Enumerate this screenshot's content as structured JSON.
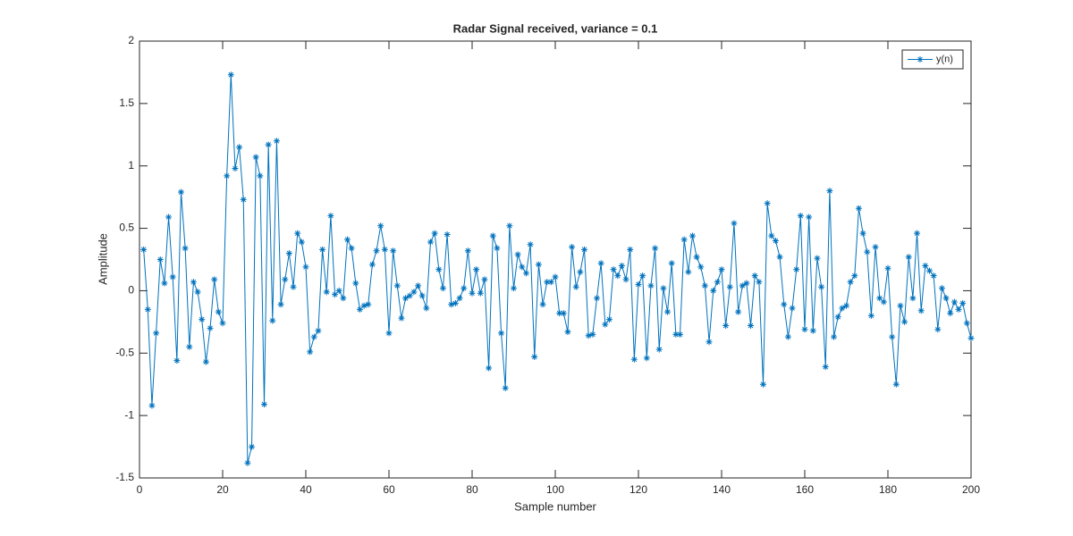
{
  "chart_data": {
    "type": "line",
    "title": "Radar Signal received, variance = 0.1",
    "xlabel": "Sample number",
    "ylabel": "Amplitude",
    "x": [
      1,
      2,
      3,
      4,
      5,
      6,
      7,
      8,
      9,
      10,
      11,
      12,
      13,
      14,
      15,
      16,
      17,
      18,
      19,
      20,
      21,
      22,
      23,
      24,
      25,
      26,
      27,
      28,
      29,
      30,
      31,
      32,
      33,
      34,
      35,
      36,
      37,
      38,
      39,
      40,
      41,
      42,
      43,
      44,
      45,
      46,
      47,
      48,
      49,
      50,
      51,
      52,
      53,
      54,
      55,
      56,
      57,
      58,
      59,
      60,
      61,
      62,
      63,
      64,
      65,
      66,
      67,
      68,
      69,
      70,
      71,
      72,
      73,
      74,
      75,
      76,
      77,
      78,
      79,
      80,
      81,
      82,
      83,
      84,
      85,
      86,
      87,
      88,
      89,
      90,
      91,
      92,
      93,
      94,
      95,
      96,
      97,
      98,
      99,
      100,
      101,
      102,
      103,
      104,
      105,
      106,
      107,
      108,
      109,
      110,
      111,
      112,
      113,
      114,
      115,
      116,
      117,
      118,
      119,
      120,
      121,
      122,
      123,
      124,
      125,
      126,
      127,
      128,
      129,
      130,
      131,
      132,
      133,
      134,
      135,
      136,
      137,
      138,
      139,
      140,
      141,
      142,
      143,
      144,
      145,
      146,
      147,
      148,
      149,
      150,
      151,
      152,
      153,
      154,
      155,
      156,
      157,
      158,
      159,
      160,
      161,
      162,
      163,
      164,
      165,
      166,
      167,
      168,
      169,
      170,
      171,
      172,
      173,
      174,
      175,
      176,
      177,
      178,
      179,
      180,
      181,
      182,
      183,
      184,
      185,
      186,
      187,
      188,
      189,
      190,
      191,
      192,
      193,
      194,
      195,
      196,
      197,
      198,
      199,
      200
    ],
    "series": [
      {
        "name": "y(n)",
        "color": "#0072bd",
        "marker": "*",
        "values": [
          0.33,
          -0.15,
          -0.92,
          -0.34,
          0.25,
          0.06,
          0.59,
          0.11,
          -0.56,
          0.79,
          0.34,
          -0.45,
          0.07,
          -0.01,
          -0.23,
          -0.57,
          -0.3,
          0.09,
          -0.17,
          -0.26,
          0.92,
          1.73,
          0.98,
          1.15,
          0.73,
          -1.38,
          -1.25,
          1.07,
          0.92,
          -0.91,
          1.17,
          -0.24,
          1.2,
          -0.11,
          0.09,
          0.3,
          0.03,
          0.46,
          0.39,
          0.19,
          -0.49,
          -0.37,
          -0.32,
          0.33,
          -0.01,
          0.6,
          -0.03,
          0.0,
          -0.06,
          0.41,
          0.34,
          0.06,
          -0.15,
          -0.12,
          -0.11,
          0.21,
          0.32,
          0.52,
          0.33,
          -0.34,
          0.32,
          0.04,
          -0.22,
          -0.06,
          -0.04,
          -0.01,
          0.04,
          -0.04,
          -0.14,
          0.39,
          0.46,
          0.17,
          0.02,
          0.45,
          -0.11,
          -0.1,
          -0.06,
          0.02,
          0.32,
          -0.02,
          0.17,
          -0.02,
          0.09,
          -0.62,
          0.44,
          0.34,
          -0.34,
          -0.78,
          0.52,
          0.02,
          0.29,
          0.19,
          0.14,
          0.37,
          -0.53,
          0.21,
          -0.11,
          0.07,
          0.07,
          0.11,
          -0.18,
          -0.18,
          -0.33,
          0.35,
          0.03,
          0.15,
          0.33,
          -0.36,
          -0.35,
          -0.06,
          0.22,
          -0.27,
          -0.23,
          0.17,
          0.12,
          0.2,
          0.09,
          0.33,
          -0.55,
          0.05,
          0.12,
          -0.54,
          0.04,
          0.34,
          -0.47,
          0.02,
          -0.17,
          0.22,
          -0.35,
          -0.35,
          0.41,
          0.15,
          0.44,
          0.27,
          0.19,
          0.04,
          -0.41,
          0.0,
          0.07,
          0.17,
          -0.28,
          0.03,
          0.54,
          -0.17,
          0.04,
          0.06,
          -0.28,
          0.12,
          0.07,
          -0.75,
          0.7,
          0.44,
          0.4,
          0.27,
          -0.11,
          -0.37,
          -0.14,
          0.17,
          0.6,
          -0.31,
          0.59,
          -0.32,
          0.26,
          0.03,
          -0.61,
          0.8,
          -0.37,
          -0.21,
          -0.14,
          -0.12,
          0.07,
          0.12,
          0.66,
          0.46,
          0.31,
          -0.2,
          0.35,
          -0.06,
          -0.09,
          0.18,
          -0.37,
          -0.75,
          -0.12,
          -0.25,
          0.27,
          -0.06,
          0.46,
          -0.16,
          0.2,
          0.16,
          0.12,
          -0.31,
          0.02,
          -0.06,
          -0.18,
          -0.09,
          -0.15,
          -0.1,
          -0.26,
          -0.38
        ]
      }
    ],
    "xlim": [
      0,
      200
    ],
    "ylim": [
      -1.5,
      2
    ],
    "xticks": [
      0,
      20,
      40,
      60,
      80,
      100,
      120,
      140,
      160,
      180,
      200
    ],
    "yticks": [
      -1.5,
      -1,
      -0.5,
      0,
      0.5,
      1,
      1.5,
      2
    ],
    "grid": false,
    "legend": "northeast"
  }
}
